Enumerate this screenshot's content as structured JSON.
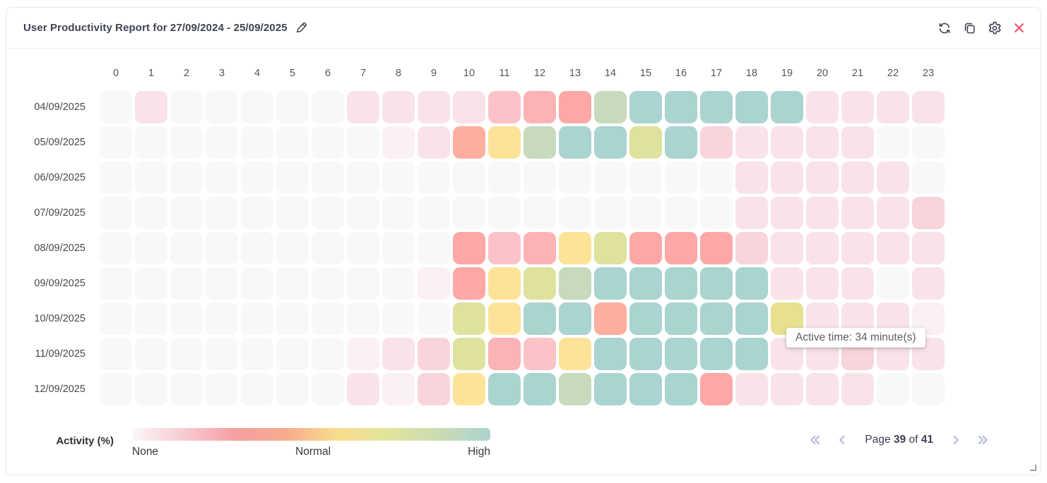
{
  "header": {
    "title": "User Productivity Report for 27/09/2024 - 25/09/2025",
    "icons": {
      "edit": "pencil-icon",
      "refresh": "refresh-icon",
      "copy": "copy-icon",
      "settings": "gear-icon",
      "close": "close-icon"
    },
    "close_color": "#f0536a",
    "icon_color": "#3f4254"
  },
  "chart_data": {
    "type": "heatmap",
    "x_label_unit": "hour of day",
    "hours": [
      "0",
      "1",
      "2",
      "3",
      "4",
      "5",
      "6",
      "7",
      "8",
      "9",
      "10",
      "11",
      "12",
      "13",
      "14",
      "15",
      "16",
      "17",
      "18",
      "19",
      "20",
      "21",
      "22",
      "23"
    ],
    "palette": {
      "g": "#f7f8fa",
      "p1": "#fbf0f3",
      "p2": "#f9e3e8",
      "p3": "#f8d5db",
      "p4": "#fbc3c7",
      "p5": "#fcb3b6",
      "s1": "#feae9e",
      "s2": "#fda8a6",
      "y": "#fce398",
      "yd": "#e7e08f",
      "l": "#dfe29d",
      "sg": "#c7dabe",
      "t": "#aad4d0"
    },
    "palette_meaning": {
      "g": "none",
      "p1-p5": "very low to low activity",
      "s1-s2": "low-mid (red zone)",
      "y": "normal",
      "yd": "normal",
      "l": "above normal",
      "sg": "high-ish",
      "t": "high"
    },
    "rows": [
      {
        "date": "04/09/2025",
        "cells": [
          "g",
          "p2",
          "g",
          "g",
          "g",
          "g",
          "g",
          "p2",
          "p2",
          "p2",
          "p2",
          "p4",
          "p5",
          "s2",
          "sg",
          "t",
          "t",
          "t",
          "t",
          "t",
          "p2",
          "p2",
          "p2",
          "p2"
        ]
      },
      {
        "date": "05/09/2025",
        "cells": [
          "g",
          "g",
          "g",
          "g",
          "g",
          "g",
          "g",
          "g",
          "p1",
          "p2",
          "s1",
          "y",
          "sg",
          "t",
          "t",
          "l",
          "t",
          "p3",
          "p2",
          "p2",
          "p2",
          "p2",
          "g",
          "g"
        ]
      },
      {
        "date": "06/09/2025",
        "cells": [
          "g",
          "g",
          "g",
          "g",
          "g",
          "g",
          "g",
          "g",
          "g",
          "g",
          "g",
          "g",
          "g",
          "g",
          "g",
          "g",
          "g",
          "g",
          "p2",
          "p2",
          "p2",
          "p2",
          "p2",
          "g"
        ]
      },
      {
        "date": "07/09/2025",
        "cells": [
          "g",
          "g",
          "g",
          "g",
          "g",
          "g",
          "g",
          "g",
          "g",
          "g",
          "g",
          "g",
          "g",
          "g",
          "g",
          "g",
          "g",
          "g",
          "p2",
          "p2",
          "p2",
          "p2",
          "p2",
          "p3"
        ]
      },
      {
        "date": "08/09/2025",
        "cells": [
          "g",
          "g",
          "g",
          "g",
          "g",
          "g",
          "g",
          "g",
          "g",
          "g",
          "s2",
          "p4",
          "p5",
          "y",
          "l",
          "s2",
          "s2",
          "s2",
          "p3",
          "p2",
          "p2",
          "p2",
          "p2",
          "p2"
        ]
      },
      {
        "date": "09/09/2025",
        "cells": [
          "g",
          "g",
          "g",
          "g",
          "g",
          "g",
          "g",
          "g",
          "g",
          "p1",
          "s2",
          "y",
          "l",
          "sg",
          "t",
          "t",
          "t",
          "t",
          "t",
          "p2",
          "p2",
          "p2",
          "g",
          "p2"
        ]
      },
      {
        "date": "10/09/2025",
        "cells": [
          "g",
          "g",
          "g",
          "g",
          "g",
          "g",
          "g",
          "g",
          "g",
          "g",
          "l",
          "y",
          "t",
          "t",
          "s1",
          "t",
          "t",
          "t",
          "t",
          "yd",
          "p2",
          "p2",
          "p2",
          "p1"
        ]
      },
      {
        "date": "11/09/2025",
        "cells": [
          "g",
          "g",
          "g",
          "g",
          "g",
          "g",
          "g",
          "p1",
          "p2",
          "p3",
          "l",
          "p5",
          "p4",
          "y",
          "t",
          "t",
          "t",
          "t",
          "t",
          "p2",
          "p2",
          "p3",
          "p2",
          "p2"
        ]
      },
      {
        "date": "12/09/2025",
        "cells": [
          "g",
          "g",
          "g",
          "g",
          "g",
          "g",
          "g",
          "p2",
          "p1",
          "p3",
          "y",
          "t",
          "t",
          "sg",
          "t",
          "t",
          "t",
          "s2",
          "p2",
          "p2",
          "p2",
          "p2",
          "g",
          "g"
        ]
      }
    ],
    "legend": {
      "label": "Activity (%)",
      "ticks": [
        "None",
        "Normal",
        "High"
      ],
      "gradient": [
        "#fbf7f8",
        "#f7ccd3",
        "#f59fa2",
        "#f7ab8e",
        "#f7dd8d",
        "#e3e49c",
        "#c9dcb4",
        "#abd3cf"
      ]
    }
  },
  "tooltip": {
    "text": "Active time: 34 minute(s)"
  },
  "pagination": {
    "page_label": "Page",
    "current": "39",
    "of_label": "of",
    "total": "41"
  }
}
